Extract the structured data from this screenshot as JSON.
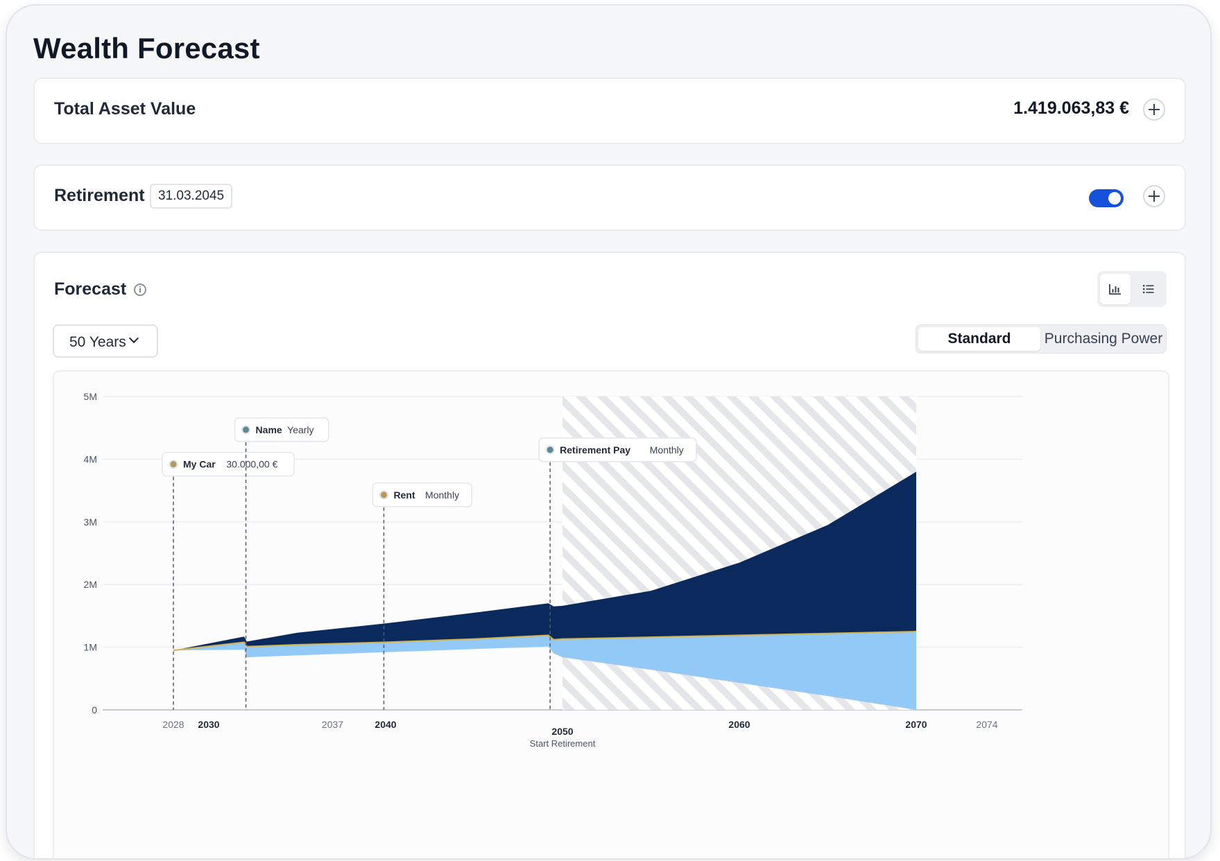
{
  "page_title": "Wealth Forecast",
  "asset_card": {
    "label": "Total Asset Value",
    "value": "1.419.063,83 €"
  },
  "retirement_card": {
    "label": "Retirement",
    "date": "31.03.2045",
    "enabled": true
  },
  "forecast": {
    "label": "Forecast",
    "info_icon": "info-icon",
    "view_icons": [
      "bar-chart-icon",
      "list-icon"
    ],
    "range_select": "50 Years",
    "modes": [
      "Standard",
      "Purchasing Power"
    ],
    "active_mode": "Standard"
  },
  "colors": {
    "accent": "#1652d9",
    "series_dark": "#0a2a5e",
    "series_light": "#93c9f7",
    "divider_line": "#d4b24a",
    "marker_gold": "#b59a5b",
    "marker_teal": "#5b8a96"
  },
  "chart_data": {
    "type": "area",
    "y_ticks": [
      "0",
      "1M",
      "2M",
      "3M",
      "4M",
      "5M"
    ],
    "ylim": [
      0,
      5000000
    ],
    "xlim": [
      2024,
      2076
    ],
    "x_ticks": [
      {
        "value": 2028,
        "label": "2028",
        "bold": false
      },
      {
        "value": 2030,
        "label": "2030",
        "bold": true
      },
      {
        "value": 2037,
        "label": "2037",
        "bold": false
      },
      {
        "value": 2040,
        "label": "2040",
        "bold": true
      },
      {
        "value": 2050,
        "label": "2050",
        "bold": true,
        "sub": "Start Retirement"
      },
      {
        "value": 2060,
        "label": "2060",
        "bold": true
      },
      {
        "value": 2070,
        "label": "2070",
        "bold": true
      },
      {
        "value": 2074,
        "label": "2074",
        "bold": false
      }
    ],
    "retirement_shade": [
      2050,
      2070
    ],
    "series": [
      {
        "x": [
          2028,
          2032,
          2032.15,
          2035,
          2040,
          2045,
          2049.2,
          2049.5,
          2050,
          2055,
          2060,
          2065,
          2070
        ],
        "upper": [
          950000,
          1170000,
          1090000,
          1230000,
          1380000,
          1550000,
          1700000,
          1650000,
          1660000,
          1900000,
          2350000,
          2950000,
          3800000
        ],
        "lower": [
          950000,
          1080000,
          1010000,
          1040000,
          1080000,
          1130000,
          1190000,
          1120000,
          1130000,
          1160000,
          1190000,
          1220000,
          1250000
        ]
      },
      {
        "x": [
          2028,
          2032,
          2032.15,
          2035,
          2040,
          2045,
          2049.2,
          2049.5,
          2050,
          2055,
          2060,
          2065,
          2070
        ],
        "upper": [
          950000,
          1070000,
          1000000,
          1030000,
          1070000,
          1120000,
          1180000,
          1110000,
          1120000,
          1150000,
          1180000,
          1210000,
          1240000
        ],
        "lower": [
          950000,
          960000,
          840000,
          870000,
          920000,
          970000,
          1010000,
          900000,
          840000,
          640000,
          430000,
          220000,
          0
        ]
      }
    ],
    "events": [
      {
        "name": "My Car",
        "detail": "30.000,00 €",
        "x": 2028,
        "label_y": 3920000,
        "color": "#b59a5b"
      },
      {
        "name": "Name",
        "detail": "Yearly",
        "x": 2032.1,
        "label_y": 4470000,
        "color": "#5b8a96"
      },
      {
        "name": "Rent",
        "detail": "Monthly",
        "x": 2039.9,
        "label_y": 3430000,
        "color": "#b59a5b"
      },
      {
        "name": "Retirement Pay",
        "detail": "Monthly",
        "x": 2049.3,
        "label_y": 4150000,
        "color": "#5b8a96"
      }
    ]
  }
}
